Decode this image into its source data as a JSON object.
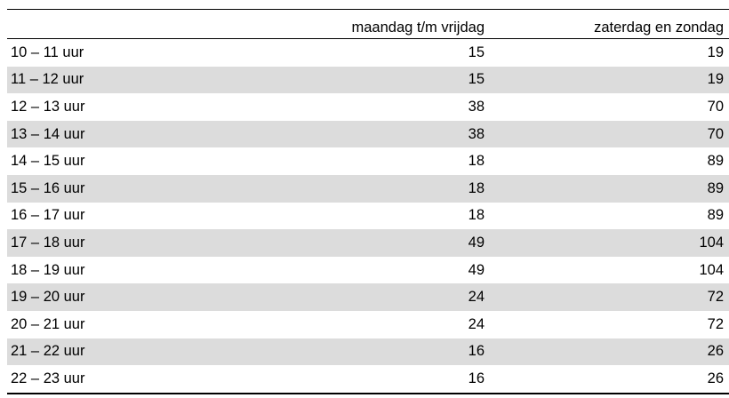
{
  "table": {
    "headers": [
      "",
      "maandag t/m vrijdag",
      "zaterdag en zondag"
    ],
    "rows": [
      {
        "label": "10 – 11 uur",
        "weekday": "15",
        "weekend": "19"
      },
      {
        "label": "11 – 12 uur",
        "weekday": "15",
        "weekend": "19"
      },
      {
        "label": "12 – 13 uur",
        "weekday": "38",
        "weekend": "70"
      },
      {
        "label": "13 – 14 uur",
        "weekday": "38",
        "weekend": "70"
      },
      {
        "label": "14 – 15 uur",
        "weekday": "18",
        "weekend": "89"
      },
      {
        "label": "15 – 16 uur",
        "weekday": "18",
        "weekend": "89"
      },
      {
        "label": "16 – 17 uur",
        "weekday": "18",
        "weekend": "89"
      },
      {
        "label": "17 – 18 uur",
        "weekday": "49",
        "weekend": "104"
      },
      {
        "label": "18 – 19 uur",
        "weekday": "49",
        "weekend": "104"
      },
      {
        "label": "19 – 20 uur",
        "weekday": "24",
        "weekend": "72"
      },
      {
        "label": "20 – 21 uur",
        "weekday": "24",
        "weekend": "72"
      },
      {
        "label": "21 – 22 uur",
        "weekday": "16",
        "weekend": "26"
      },
      {
        "label": "22 – 23 uur",
        "weekday": "16",
        "weekend": "26"
      }
    ]
  }
}
